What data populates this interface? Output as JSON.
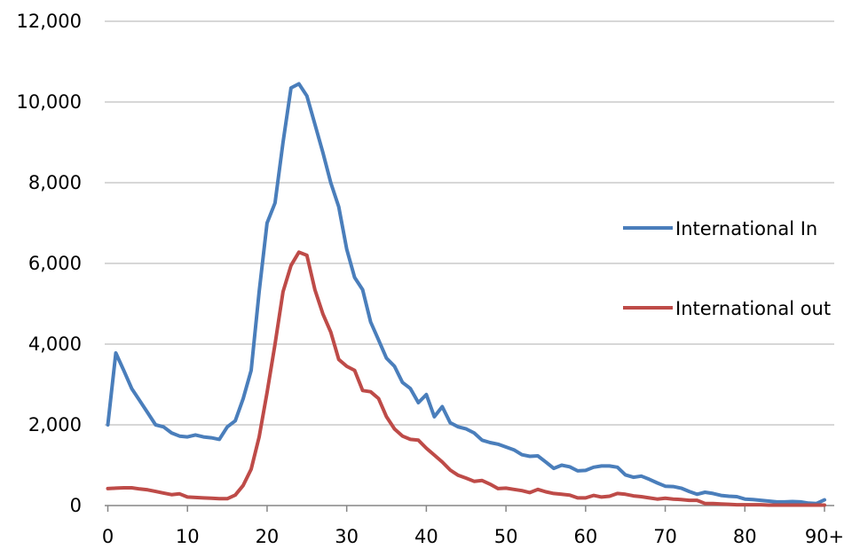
{
  "chart_data": {
    "type": "line",
    "title": "",
    "xlabel": "",
    "ylabel": "",
    "xlim": [
      0,
      90
    ],
    "ylim": [
      0,
      12000
    ],
    "x_ticks": [
      0,
      10,
      20,
      30,
      40,
      50,
      60,
      70,
      80,
      90
    ],
    "x_tick_labels": [
      "0",
      "10",
      "20",
      "30",
      "40",
      "50",
      "60",
      "70",
      "80",
      "90+"
    ],
    "y_ticks": [
      0,
      2000,
      4000,
      6000,
      8000,
      10000,
      12000
    ],
    "y_tick_labels": [
      "0",
      "2,000",
      "4,000",
      "6,000",
      "8,000",
      "10,000",
      "12,000"
    ],
    "grid": "horizontal",
    "legend_position": "right",
    "x": [
      0,
      1,
      2,
      3,
      4,
      5,
      6,
      7,
      8,
      9,
      10,
      11,
      12,
      13,
      14,
      15,
      16,
      17,
      18,
      19,
      20,
      21,
      22,
      23,
      24,
      25,
      26,
      27,
      28,
      29,
      30,
      31,
      32,
      33,
      34,
      35,
      36,
      37,
      38,
      39,
      40,
      41,
      42,
      43,
      44,
      45,
      46,
      47,
      48,
      49,
      50,
      51,
      52,
      53,
      54,
      55,
      56,
      57,
      58,
      59,
      60,
      61,
      62,
      63,
      64,
      65,
      66,
      67,
      68,
      69,
      70,
      71,
      72,
      73,
      74,
      75,
      76,
      77,
      78,
      79,
      80,
      81,
      82,
      83,
      84,
      85,
      86,
      87,
      88,
      89,
      90
    ],
    "series": [
      {
        "name": "International In",
        "color": "#4a7ebb",
        "values": [
          2000,
          3780,
          3350,
          2900,
          2600,
          2300,
          2000,
          1950,
          1800,
          1720,
          1700,
          1750,
          1700,
          1680,
          1640,
          1950,
          2100,
          2650,
          3350,
          5300,
          7000,
          7500,
          9000,
          10350,
          10450,
          10150,
          9450,
          8750,
          8000,
          7400,
          6350,
          5650,
          5350,
          4550,
          4100,
          3650,
          3450,
          3050,
          2900,
          2550,
          2750,
          2200,
          2450,
          2050,
          1950,
          1900,
          1800,
          1620,
          1560,
          1520,
          1450,
          1380,
          1260,
          1220,
          1230,
          1080,
          920,
          1000,
          960,
          860,
          870,
          950,
          980,
          980,
          950,
          760,
          700,
          730,
          650,
          560,
          480,
          470,
          430,
          350,
          280,
          330,
          300,
          250,
          230,
          220,
          160,
          150,
          130,
          110,
          90,
          90,
          100,
          90,
          60,
          50,
          140
        ]
      },
      {
        "name": "International out",
        "color": "#be4b48",
        "values": [
          420,
          430,
          440,
          440,
          410,
          390,
          350,
          310,
          270,
          290,
          210,
          200,
          190,
          180,
          170,
          170,
          260,
          500,
          900,
          1700,
          2800,
          4000,
          5300,
          5950,
          6280,
          6200,
          5350,
          4750,
          4300,
          3620,
          3450,
          3350,
          2850,
          2820,
          2650,
          2200,
          1900,
          1720,
          1640,
          1620,
          1420,
          1250,
          1080,
          880,
          750,
          680,
          600,
          620,
          530,
          420,
          430,
          400,
          370,
          320,
          400,
          340,
          300,
          280,
          260,
          190,
          190,
          250,
          210,
          230,
          300,
          280,
          240,
          220,
          190,
          160,
          180,
          160,
          150,
          130,
          130,
          50,
          50,
          40,
          30,
          20,
          20,
          20,
          20,
          10,
          10,
          10,
          10,
          10,
          10,
          10,
          10
        ]
      }
    ]
  }
}
